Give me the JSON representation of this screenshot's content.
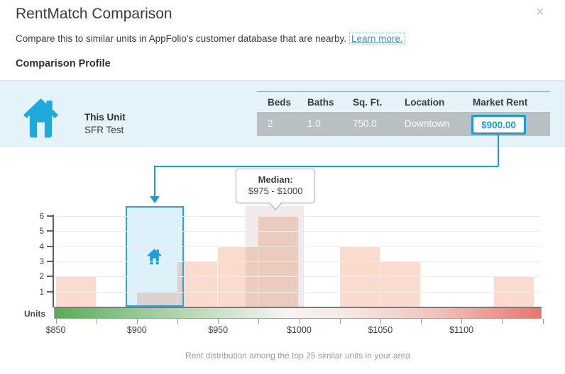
{
  "modal": {
    "title": "RentMatch Comparison",
    "subtitle": "Compare this to similar units in AppFolio's customer database that are nearby.",
    "learn_more_label": "Learn more.",
    "close_glyph": "✕",
    "section_title": "Comparison Profile"
  },
  "profile": {
    "unit_label": "This Unit",
    "unit_name": "SFR Test",
    "table": {
      "columns": [
        "Beds",
        "Baths",
        "Sq. Ft.",
        "Location",
        "Market Rent"
      ],
      "values": [
        "2",
        "1.0",
        "750.0",
        "Downtown",
        "$900.00"
      ]
    }
  },
  "colors": {
    "accent_blue": "#1b9dcc",
    "house_icon_blue": "#1faadb",
    "panel_background": "#e4f3f9",
    "table_row_gray": "#b9c0c3",
    "bar_pink": "#fbdbce",
    "gradient_green": "#56ad56",
    "gradient_red": "#e9776f"
  },
  "chart_data": {
    "type": "bar",
    "title": "",
    "xlabel": "",
    "ylabel": "Units",
    "ylim": [
      0,
      6
    ],
    "y_ticks": [
      1,
      2,
      3,
      4,
      5,
      6
    ],
    "grid": true,
    "x_axis": {
      "min": 850,
      "max": 1150,
      "tick_step": 25,
      "labels": [
        {
          "value": 850,
          "label": "$850"
        },
        {
          "value": 900,
          "label": "$900"
        },
        {
          "value": 950,
          "label": "$950"
        },
        {
          "value": 1000,
          "label": "$1000"
        },
        {
          "value": 1050,
          "label": "$1050"
        },
        {
          "value": 1100,
          "label": "$1100"
        }
      ]
    },
    "bins": [
      {
        "start": 850,
        "end": 875,
        "count": 2
      },
      {
        "start": 900,
        "end": 925,
        "count": 1
      },
      {
        "start": 925,
        "end": 950,
        "count": 3
      },
      {
        "start": 950,
        "end": 975,
        "count": 4
      },
      {
        "start": 975,
        "end": 1000,
        "count": 6
      },
      {
        "start": 1025,
        "end": 1050,
        "count": 4
      },
      {
        "start": 1050,
        "end": 1075,
        "count": 3
      },
      {
        "start": 1120,
        "end": 1145,
        "count": 2
      }
    ],
    "this_unit": {
      "band_from": 893,
      "band_to": 929,
      "market_rent": "$900.00"
    },
    "median": {
      "band_from": 967,
      "band_to": 1003,
      "callout_title": "Median:",
      "callout_value": "$975 - $1000"
    },
    "caption": "Rent distribution among the top 25 similar units in your area"
  }
}
